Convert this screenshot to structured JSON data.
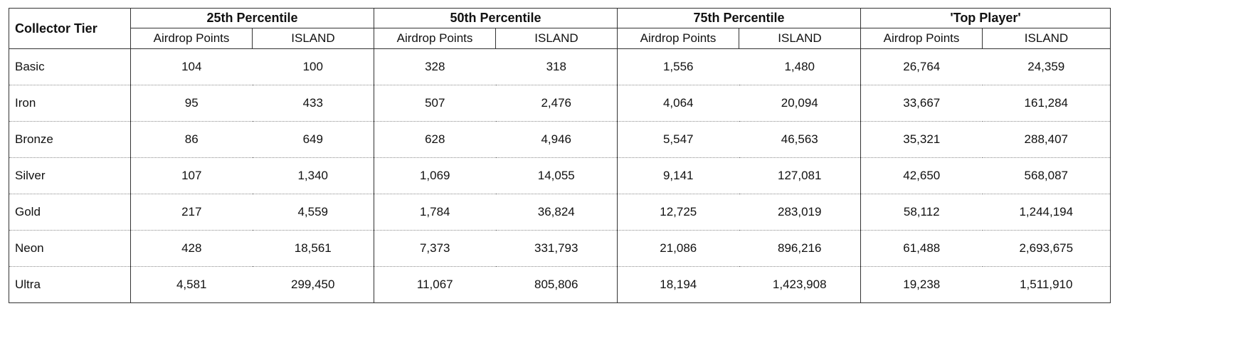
{
  "table": {
    "tier_header": "Collector Tier",
    "groups": [
      {
        "label": "25th Percentile",
        "sub": [
          "Airdrop Points",
          "ISLAND"
        ]
      },
      {
        "label": "50th Percentile",
        "sub": [
          "Airdrop Points",
          "ISLAND"
        ]
      },
      {
        "label": "75th Percentile",
        "sub": [
          "Airdrop Points",
          "ISLAND"
        ]
      },
      {
        "label": "'Top Player'",
        "sub": [
          "Airdrop Points",
          "ISLAND"
        ]
      }
    ],
    "rows": [
      {
        "tier": "Basic",
        "values": [
          "104",
          "100",
          "328",
          "318",
          "1,556",
          "1,480",
          "26,764",
          "24,359"
        ]
      },
      {
        "tier": "Iron",
        "values": [
          "95",
          "433",
          "507",
          "2,476",
          "4,064",
          "20,094",
          "33,667",
          "161,284"
        ]
      },
      {
        "tier": "Bronze",
        "values": [
          "86",
          "649",
          "628",
          "4,946",
          "5,547",
          "46,563",
          "35,321",
          "288,407"
        ]
      },
      {
        "tier": "Silver",
        "values": [
          "107",
          "1,340",
          "1,069",
          "14,055",
          "9,141",
          "127,081",
          "42,650",
          "568,087"
        ]
      },
      {
        "tier": "Gold",
        "values": [
          "217",
          "4,559",
          "1,784",
          "36,824",
          "12,725",
          "283,019",
          "58,112",
          "1,244,194"
        ]
      },
      {
        "tier": "Neon",
        "values": [
          "428",
          "18,561",
          "7,373",
          "331,793",
          "21,086",
          "896,216",
          "61,488",
          "2,693,675"
        ]
      },
      {
        "tier": "Ultra",
        "values": [
          "4,581",
          "299,450",
          "11,067",
          "805,806",
          "18,194",
          "1,423,908",
          "19,238",
          "1,511,910"
        ]
      }
    ]
  }
}
